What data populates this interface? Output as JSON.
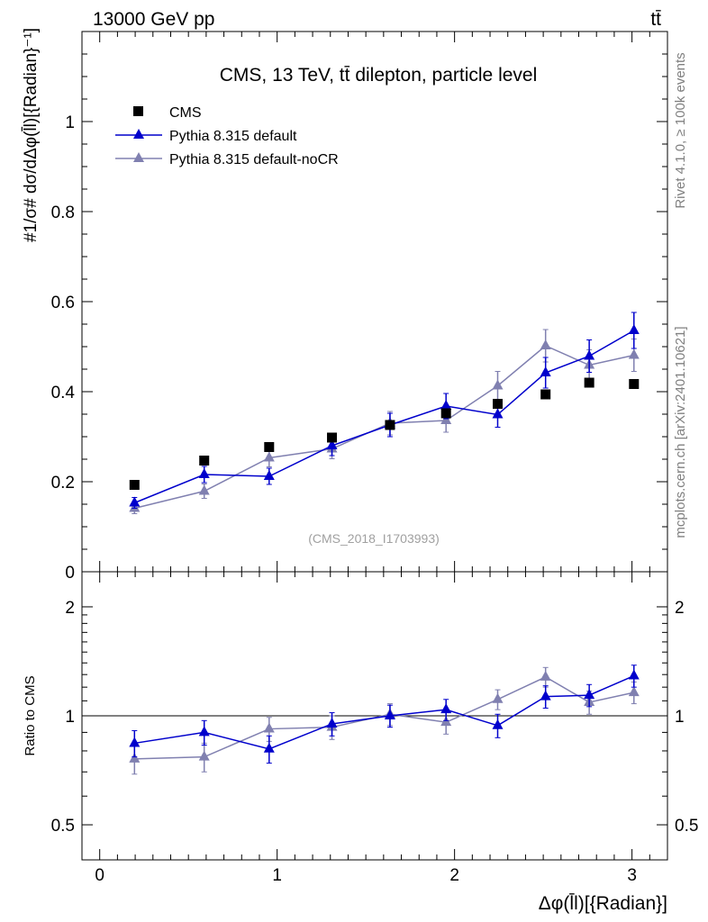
{
  "header": {
    "left": "13000 GeV pp",
    "right": "tt̄"
  },
  "side_labels": {
    "rivet": "Rivet 4.1.0, ≥ 100k events",
    "mcplots": "mcplots.cern.ch [arXiv:2401.10621]"
  },
  "colors": {
    "cms": "#000000",
    "default": "#0000cc",
    "nocr": "#8080b0"
  },
  "chart_data": [
    {
      "type": "scatter",
      "title": "CMS, 13 TeV, tt̄ dilepton, particle level",
      "ylabel": "#1/σ# dσ/dΔφ(l̄l)[{Radian}⁻¹]",
      "watermark": "(CMS_2018_I1703993)",
      "xlim": [
        -0.1,
        3.2
      ],
      "ylim": [
        0,
        1.2
      ],
      "x_ticks": [
        0,
        1,
        2,
        3
      ],
      "y_ticks": [
        0,
        0.2,
        0.4,
        0.6,
        0.8,
        1
      ],
      "y_tick_labels": [
        "0",
        "0.2",
        "0.4",
        "0.6",
        "0.8",
        "1"
      ],
      "x": [
        0.196,
        0.589,
        0.955,
        1.309,
        1.636,
        1.952,
        2.243,
        2.513,
        2.759,
        3.011
      ],
      "legend": [
        "CMS",
        "Pythia 8.315 default",
        "Pythia 8.315 default-noCR"
      ],
      "series": [
        {
          "name": "CMS",
          "values": [
            0.193,
            0.247,
            0.277,
            0.298,
            0.326,
            0.352,
            0.373,
            0.394,
            0.42,
            0.417
          ],
          "errors": [
            0,
            0,
            0,
            0,
            0,
            0,
            0,
            0,
            0,
            0
          ]
        },
        {
          "name": "Pythia 8.315 default",
          "values": [
            0.153,
            0.216,
            0.212,
            0.28,
            0.326,
            0.368,
            0.349,
            0.442,
            0.479,
            0.536
          ],
          "errors": [
            0.012,
            0.018,
            0.018,
            0.022,
            0.026,
            0.028,
            0.028,
            0.034,
            0.036,
            0.04
          ]
        },
        {
          "name": "Pythia 8.315 default-noCR",
          "values": [
            0.141,
            0.179,
            0.253,
            0.273,
            0.33,
            0.336,
            0.413,
            0.502,
            0.459,
            0.481
          ],
          "errors": [
            0.012,
            0.016,
            0.02,
            0.022,
            0.026,
            0.026,
            0.032,
            0.036,
            0.034,
            0.036
          ]
        }
      ]
    },
    {
      "type": "scatter",
      "ylabel": "Ratio to CMS",
      "xlabel": "Δφ(l̄l)[{Radian}]",
      "scale": "log",
      "ylim": [
        0.4,
        2.5
      ],
      "y_ticks": [
        0.5,
        1,
        2
      ],
      "y_tick_labels": [
        "0.5",
        "1",
        "2"
      ],
      "x_ticks": [
        0,
        1,
        2,
        3
      ],
      "x_tick_labels": [
        "0",
        "1",
        "2",
        "3"
      ],
      "reference": 1,
      "series": [
        {
          "name": "Pythia 8.315 default",
          "values": [
            0.84,
            0.9,
            0.81,
            0.95,
            1.0,
            1.04,
            0.94,
            1.13,
            1.14,
            1.29
          ],
          "errors": [
            0.07,
            0.07,
            0.07,
            0.07,
            0.07,
            0.07,
            0.07,
            0.08,
            0.08,
            0.09
          ]
        },
        {
          "name": "Pythia 8.315 default-noCR",
          "values": [
            0.76,
            0.77,
            0.92,
            0.93,
            1.01,
            0.96,
            1.11,
            1.28,
            1.09,
            1.16
          ],
          "errors": [
            0.07,
            0.07,
            0.07,
            0.07,
            0.07,
            0.07,
            0.07,
            0.08,
            0.08,
            0.08
          ]
        }
      ]
    }
  ]
}
